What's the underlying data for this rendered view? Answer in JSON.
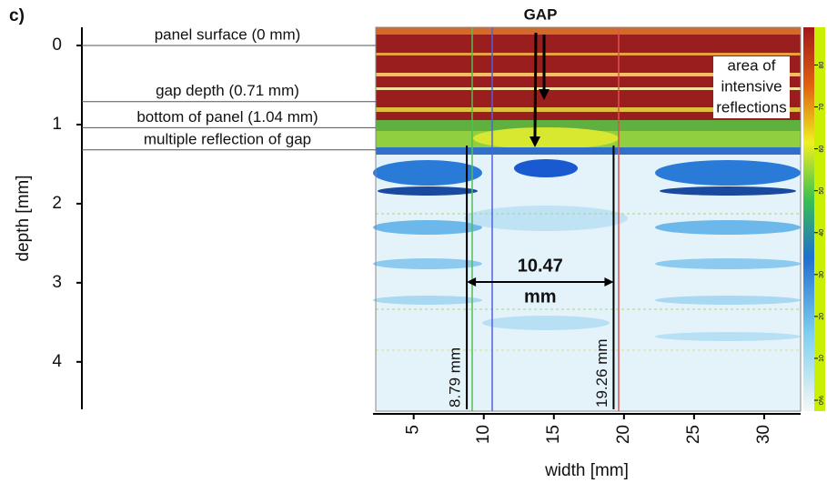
{
  "chart_data": {
    "type": "bscan",
    "panel_label": "c)",
    "y_label": "depth [mm]",
    "x_label": "width [mm]",
    "ylim": [
      -0.23,
      4.6
    ],
    "yticks": [
      0,
      1,
      2,
      3,
      4
    ],
    "y_inverted": true,
    "xlim": [
      2.1,
      32.6
    ],
    "xticks": [
      5,
      10,
      15,
      20,
      25,
      30
    ],
    "depth_markers": [
      {
        "label": "panel surface (0 mm)",
        "depth": 0
      },
      {
        "label": "gap depth (0.71 mm)",
        "depth": 0.71
      },
      {
        "label": "bottom of panel (1.04 mm)",
        "depth": 1.04
      },
      {
        "label": "multiple reflection of gap",
        "depth": 1.32
      }
    ],
    "width_markers": [
      {
        "label": "8.79 mm",
        "x": 8.79
      },
      {
        "label": "19.26 mm",
        "x": 19.26
      }
    ],
    "gap_width": {
      "value": 10.47,
      "unit": "mm"
    },
    "gap_label": "GAP",
    "reflection_note": [
      "area of",
      "intensive",
      "reflections"
    ],
    "colorbar": {
      "lim": [
        -2.6,
        89
      ],
      "ticks": [
        {
          "value": 0,
          "label": "0%"
        },
        10,
        20,
        30,
        40,
        50,
        60,
        70,
        80
      ]
    }
  }
}
